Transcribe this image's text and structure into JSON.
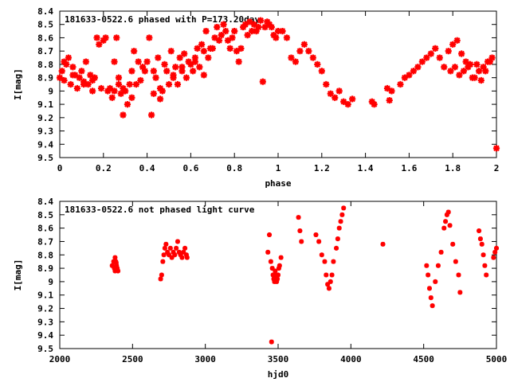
{
  "marker_color": "#ff0000",
  "axis_color": "#000000",
  "chart_data": [
    {
      "type": "scatter",
      "title": "181633-0522.6 phased with P=173.20day",
      "xlabel": "phase",
      "ylabel": "I[mag]",
      "xlim": [
        0,
        2
      ],
      "ylim": [
        8.4,
        9.5
      ],
      "y_inverted": true,
      "grid": false,
      "legend": "none",
      "xticks": [
        "0",
        "0.2",
        "0.4",
        "0.6",
        "0.8",
        "1",
        "1.2",
        "1.4",
        "1.6",
        "1.8",
        "2"
      ],
      "yticks": [
        "8.4",
        "8.5",
        "8.6",
        "8.7",
        "8.8",
        "8.9",
        "9",
        "9.1",
        "9.2",
        "9.3",
        "9.4",
        "9.5"
      ],
      "series": [
        {
          "x": [
            0.0,
            0.01,
            0.02,
            0.03,
            0.04,
            0.05,
            0.06,
            0.07,
            0.08,
            0.09,
            0.1,
            0.11,
            0.12,
            0.13,
            0.14,
            0.15,
            0.16,
            0.17,
            0.18,
            0.19,
            0.2,
            0.21,
            0.22,
            0.23,
            0.24,
            0.25,
            0.26,
            0.27,
            0.28,
            0.29,
            0.3,
            0.31,
            0.32,
            0.33,
            0.34,
            0.35,
            0.36,
            0.37,
            0.38,
            0.39,
            0.4,
            0.41,
            0.42,
            0.43,
            0.44,
            0.45,
            0.46,
            0.47,
            0.48,
            0.49,
            0.5,
            0.51,
            0.52,
            0.53,
            0.54,
            0.55,
            0.56,
            0.57,
            0.58,
            0.59,
            0.6,
            0.61,
            0.62,
            0.63,
            0.64,
            0.65,
            0.66,
            0.67,
            0.68,
            0.69,
            0.7,
            0.71,
            0.72,
            0.73,
            0.74,
            0.75,
            0.76,
            0.77,
            0.78,
            0.79,
            0.8,
            0.81,
            0.82,
            0.83,
            0.84,
            0.85,
            0.86,
            0.87,
            0.88,
            0.89,
            0.9,
            0.91,
            0.92,
            0.93,
            0.94,
            0.95,
            0.96,
            0.97,
            0.98,
            0.99,
            1.0,
            1.02,
            1.04,
            1.06,
            1.08,
            1.1,
            1.12,
            1.14,
            1.16,
            1.18,
            1.2,
            1.22,
            1.24,
            1.26,
            1.28,
            1.3,
            1.32,
            1.34,
            1.43,
            1.44,
            1.5,
            1.51,
            1.52,
            1.56,
            1.58,
            1.6,
            1.62,
            1.64,
            1.66,
            1.68,
            1.7,
            1.72,
            1.74,
            1.76,
            1.78,
            1.8,
            1.82,
            1.84,
            1.86,
            1.88,
            1.9,
            1.92,
            1.94,
            1.96,
            1.98,
            2.0,
            1.79,
            1.81,
            1.83,
            1.85,
            1.87,
            1.89,
            1.91,
            1.93,
            1.95,
            1.97,
            0.02,
            0.06,
            0.11,
            0.15,
            0.25,
            0.27,
            0.29,
            0.33,
            0.43,
            0.46,
            0.52,
            0.56,
            0.62,
            0.66
          ],
          "y": [
            8.9,
            8.85,
            8.92,
            8.8,
            8.75,
            8.95,
            8.82,
            8.88,
            8.98,
            8.9,
            8.85,
            8.93,
            8.78,
            8.95,
            8.88,
            9.0,
            8.9,
            8.6,
            8.65,
            8.98,
            8.62,
            8.6,
            9.0,
            8.98,
            9.05,
            8.78,
            8.6,
            8.9,
            9.02,
            9.18,
            9.0,
            9.1,
            8.95,
            8.85,
            8.7,
            8.95,
            8.78,
            8.92,
            8.82,
            8.85,
            8.78,
            8.6,
            9.18,
            8.85,
            8.9,
            8.75,
            9.06,
            9.0,
            8.8,
            8.85,
            8.95,
            8.7,
            8.9,
            8.82,
            8.95,
            8.75,
            8.85,
            8.72,
            8.9,
            8.78,
            8.8,
            8.85,
            8.75,
            8.68,
            8.82,
            8.65,
            8.7,
            8.55,
            8.75,
            8.68,
            8.68,
            8.6,
            8.52,
            8.62,
            8.58,
            8.5,
            8.55,
            8.62,
            8.68,
            8.6,
            8.55,
            8.7,
            8.78,
            8.68,
            8.52,
            8.5,
            8.58,
            8.48,
            8.55,
            8.5,
            8.55,
            8.52,
            8.47,
            8.93,
            8.52,
            8.48,
            8.5,
            8.52,
            8.58,
            8.6,
            8.55,
            8.55,
            8.6,
            8.75,
            8.78,
            8.7,
            8.65,
            8.7,
            8.75,
            8.8,
            8.85,
            8.95,
            9.02,
            9.05,
            9.0,
            9.08,
            9.1,
            9.06,
            9.08,
            9.1,
            8.98,
            9.07,
            9.0,
            8.95,
            8.9,
            8.88,
            8.85,
            8.82,
            8.78,
            8.75,
            8.72,
            8.68,
            8.75,
            8.82,
            8.7,
            8.65,
            8.62,
            8.72,
            8.78,
            8.8,
            8.9,
            8.85,
            8.82,
            8.78,
            8.75,
            9.43,
            8.85,
            8.82,
            8.88,
            8.85,
            8.82,
            8.9,
            8.8,
            8.92,
            8.85,
            8.78,
            8.78,
            8.88,
            8.95,
            8.92,
            9.0,
            8.95,
            8.98,
            9.05,
            9.02,
            8.98,
            8.88,
            8.82,
            8.78,
            8.88
          ]
        }
      ]
    },
    {
      "type": "scatter",
      "title": "181633-0522.6 not phased light curve",
      "xlabel": "hjd0",
      "ylabel": "I[mag]",
      "xlim": [
        2000,
        5000
      ],
      "ylim": [
        8.4,
        9.5
      ],
      "y_inverted": true,
      "grid": false,
      "legend": "none",
      "xticks": [
        "2000",
        "2500",
        "3000",
        "3500",
        "4000",
        "4500",
        "5000"
      ],
      "yticks": [
        "8.4",
        "8.5",
        "8.6",
        "8.7",
        "8.8",
        "8.9",
        "9",
        "9.1",
        "9.2",
        "9.3",
        "9.4",
        "9.5"
      ],
      "series": [
        {
          "x": [
            2360,
            2370,
            2375,
            2380,
            2385,
            2390,
            2395,
            2400,
            2380,
            2388,
            2693,
            2700,
            2708,
            2715,
            2722,
            2730,
            2740,
            2750,
            2760,
            2770,
            2780,
            2790,
            2800,
            2810,
            2820,
            2830,
            2840,
            2850,
            2860,
            2870,
            2875,
            3430,
            3440,
            3450,
            3460,
            3465,
            3470,
            3475,
            3480,
            3485,
            3490,
            3495,
            3500,
            3505,
            3510,
            3520,
            3455,
            3640,
            3650,
            3660,
            3760,
            3780,
            3800,
            3820,
            3830,
            3840,
            3850,
            3860,
            3870,
            3880,
            3900,
            3910,
            3920,
            3930,
            3940,
            3950,
            4220,
            4520,
            4530,
            4540,
            4550,
            4560,
            4580,
            4600,
            4620,
            4640,
            4650,
            4660,
            4670,
            4680,
            4700,
            4720,
            4740,
            4750,
            4880,
            4890,
            4900,
            4910,
            4920,
            4930,
            4980,
            4990,
            5000
          ],
          "y": [
            8.88,
            8.85,
            8.9,
            8.92,
            8.85,
            8.88,
            8.9,
            8.92,
            8.82,
            8.86,
            8.98,
            8.95,
            8.85,
            8.8,
            8.75,
            8.72,
            8.78,
            8.8,
            8.75,
            8.82,
            8.78,
            8.8,
            8.75,
            8.7,
            8.78,
            8.8,
            8.82,
            8.78,
            8.75,
            8.8,
            8.82,
            8.78,
            8.65,
            8.85,
            8.9,
            8.95,
            8.98,
            9.0,
            8.92,
            8.95,
            9.0,
            8.98,
            8.95,
            8.9,
            8.88,
            8.82,
            9.45,
            8.52,
            8.62,
            8.7,
            8.65,
            8.7,
            8.8,
            8.85,
            8.95,
            9.02,
            9.05,
            9.0,
            8.95,
            8.85,
            8.75,
            8.68,
            8.6,
            8.55,
            8.5,
            8.45,
            8.72,
            8.88,
            8.95,
            9.05,
            9.12,
            9.18,
            9.0,
            8.88,
            8.78,
            8.6,
            8.55,
            8.5,
            8.48,
            8.58,
            8.72,
            8.85,
            8.95,
            9.08,
            8.62,
            8.68,
            8.72,
            8.8,
            8.88,
            8.95,
            8.82,
            8.78,
            8.75
          ]
        }
      ]
    }
  ]
}
